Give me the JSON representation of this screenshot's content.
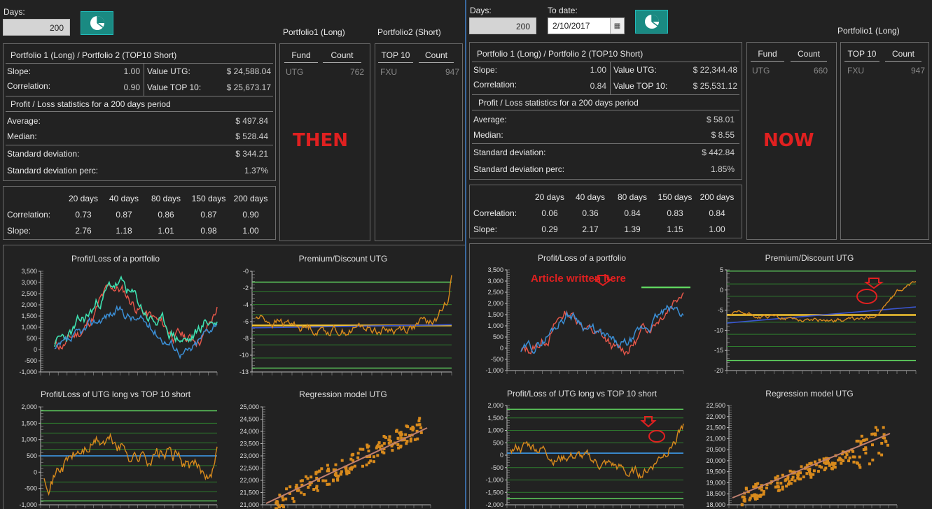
{
  "left": {
    "days_label": "Days:",
    "days_value": "200",
    "pf1_header": "Portfolio1 (Long)",
    "pf2_header": "Portfolio2 (Short)",
    "stats_title": "Portfolio 1 (Long) / Portfolio 2 (TOP10 Short)",
    "slope_label": "Slope:",
    "slope_value": "1.00",
    "correlation_label": "Correlation:",
    "correlation_value": "0.90",
    "value_utg_label": "Value UTG:",
    "value_utg": "$ 24,588.04",
    "value_top10_label": "Value TOP 10:",
    "value_top10": "$ 25,673.17",
    "pl_title": "Profit / Loss statistics for a 200 days period",
    "average_label": "Average:",
    "average": "$ 497.84",
    "median_label": "Median:",
    "median": "$ 528.44",
    "std_label": "Standard deviation:",
    "std": "$ 344.21",
    "stdp_label": "Standard deviation perc:",
    "stdp": "1.37%",
    "period_headers": [
      "20 days",
      "40 days",
      "80 days",
      "150 days",
      "200 days"
    ],
    "corr_row_label": "Correlation:",
    "corr_row": [
      "0.73",
      "0.87",
      "0.86",
      "0.87",
      "0.90"
    ],
    "slope_row_label": "Slope:",
    "slope_row": [
      "2.76",
      "1.18",
      "1.01",
      "0.98",
      "1.00"
    ],
    "fund_header": "Fund",
    "count_header": "Count",
    "fund_name": "UTG",
    "fund_count": "762",
    "top10_header": "TOP 10",
    "top10_count_header": "Count",
    "top10_name": "FXU",
    "top10_count": "947",
    "overlay": "THEN",
    "chart_titles": [
      "Profit/Loss of a portfolio",
      "Premium/Discount UTG",
      "Profit/Loss of UTG long vs TOP 10 short",
      "Regression model UTG"
    ],
    "chart1_ticks": [
      "3,500",
      "3,000",
      "2,500",
      "2,000",
      "1,500",
      "1,000",
      "500",
      "0",
      "-500",
      "-1,000"
    ],
    "chart2_ticks": [
      "-0",
      "-2",
      "-4",
      "-6",
      "-8",
      "-10",
      "-13"
    ],
    "chart3_ticks": [
      "2,000",
      "1,500",
      "1,000",
      "500",
      "0",
      "-500",
      "-1,000"
    ],
    "chart4_ticks": [
      "25,000",
      "24,500",
      "24,000",
      "23,500",
      "23,000",
      "22,500",
      "22,000",
      "21,500",
      "21,000"
    ]
  },
  "right": {
    "days_label": "Days:",
    "days_value": "200",
    "todate_label": "To date:",
    "todate_value": "2/10/2017",
    "pf1_header": "Portfolio1 (Long)",
    "stats_title": "Portfolio 1 (Long) / Portfolio 2 (TOP10 Short)",
    "slope_label": "Slope:",
    "slope_value": "1.00",
    "correlation_label": "Correlation:",
    "correlation_value": "0.84",
    "value_utg_label": "Value UTG:",
    "value_utg": "$ 22,344.48",
    "value_top10_label": "Value TOP 10:",
    "value_top10": "$ 25,531.12",
    "pl_title": "Profit / Loss statistics for a 200 days period",
    "average_label": "Average:",
    "average": "$ 58.01",
    "median_label": "Median:",
    "median": "$ 8.55",
    "std_label": "Standard deviation:",
    "std": "$ 442.84",
    "stdp_label": "Standard deviation perc:",
    "stdp": "1.85%",
    "period_headers": [
      "20 days",
      "40 days",
      "80 days",
      "150 days",
      "200 days"
    ],
    "corr_row_label": "Correlation:",
    "corr_row": [
      "0.06",
      "0.36",
      "0.84",
      "0.83",
      "0.84"
    ],
    "slope_row_label": "Slope:",
    "slope_row": [
      "0.29",
      "2.17",
      "1.39",
      "1.15",
      "1.00"
    ],
    "fund_header": "Fund",
    "count_header": "Count",
    "fund_name": "UTG",
    "fund_count": "660",
    "top10_header": "TOP 10",
    "top10_count_header": "Count",
    "top10_name": "FXU",
    "top10_count": "947",
    "overlay": "NOW",
    "annotation": "Article written here",
    "chart_titles": [
      "Profit/Loss of a portfolio",
      "Premium/Discount UTG",
      "Profit/Loss of UTG long vs TOP 10 short",
      "Regression model UTG"
    ],
    "chart1_ticks": [
      "3,500",
      "3,000",
      "2,500",
      "2,000",
      "1,500",
      "1,000",
      "500",
      "0",
      "-500",
      "-1,000"
    ],
    "chart2_ticks": [
      "5",
      "0",
      "-5",
      "-10",
      "-15",
      "-20"
    ],
    "chart3_ticks": [
      "2,000",
      "1,500",
      "1,000",
      "500",
      "0",
      "-500",
      "-1,000",
      "-1,500",
      "-2,000"
    ],
    "chart4_ticks": [
      "22,500",
      "22,000",
      "21,500",
      "21,000",
      "20,500",
      "20,000",
      "19,500",
      "19,000",
      "18,500",
      "18,000"
    ]
  },
  "colors": {
    "accent_button": "#1a8a82",
    "overlay_text": "#e02020",
    "series_red": "#e8574a",
    "series_blue": "#3b8fd6",
    "series_teal": "#3fe0b0",
    "series_orange": "#d88a1c",
    "band_green": "#5fd35f",
    "mean_yellow": "#f4c430"
  }
}
